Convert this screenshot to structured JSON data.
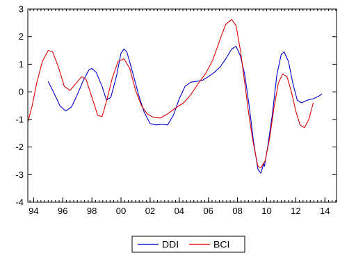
{
  "chart_data": {
    "type": "line",
    "title": "",
    "xlabel": "",
    "ylabel": "",
    "xlim": [
      1993.6,
      2014.8
    ],
    "ylim": [
      -4,
      3
    ],
    "x_ticks": [
      1994,
      1996,
      1998,
      2000,
      2002,
      2004,
      2006,
      2008,
      2010,
      2012,
      2014
    ],
    "x_tick_labels": [
      "94",
      "96",
      "98",
      "00",
      "02",
      "04",
      "06",
      "08",
      "10",
      "12",
      "14"
    ],
    "y_ticks": [
      -4,
      -3,
      -2,
      -1,
      0,
      1,
      2,
      3
    ],
    "y_tick_labels": [
      "-4",
      "-3",
      "-2",
      "-1",
      "0",
      "1",
      "2",
      "3"
    ],
    "grid": false,
    "legend_position": "bottom-center",
    "series": [
      {
        "name": "DDI",
        "color": "#0000cc",
        "points": [
          [
            1995.0,
            0.38
          ],
          [
            1995.4,
            -0.05
          ],
          [
            1995.8,
            -0.5
          ],
          [
            1996.2,
            -0.7
          ],
          [
            1996.6,
            -0.55
          ],
          [
            1997.0,
            -0.1
          ],
          [
            1997.4,
            0.4
          ],
          [
            1997.8,
            0.8
          ],
          [
            1998.0,
            0.85
          ],
          [
            1998.3,
            0.7
          ],
          [
            1998.7,
            0.2
          ],
          [
            1999.0,
            -0.3
          ],
          [
            1999.3,
            -0.2
          ],
          [
            1999.7,
            0.6
          ],
          [
            2000.0,
            1.4
          ],
          [
            2000.2,
            1.55
          ],
          [
            2000.4,
            1.45
          ],
          [
            2000.8,
            0.7
          ],
          [
            2001.2,
            -0.1
          ],
          [
            2001.6,
            -0.75
          ],
          [
            2002.0,
            -1.15
          ],
          [
            2002.4,
            -1.2
          ],
          [
            2002.8,
            -1.18
          ],
          [
            2003.2,
            -1.2
          ],
          [
            2003.6,
            -0.85
          ],
          [
            2004.0,
            -0.25
          ],
          [
            2004.4,
            0.2
          ],
          [
            2004.8,
            0.35
          ],
          [
            2005.2,
            0.38
          ],
          [
            2005.6,
            0.42
          ],
          [
            2006.0,
            0.55
          ],
          [
            2006.4,
            0.7
          ],
          [
            2006.8,
            0.9
          ],
          [
            2007.2,
            1.2
          ],
          [
            2007.6,
            1.55
          ],
          [
            2007.9,
            1.65
          ],
          [
            2008.2,
            1.3
          ],
          [
            2008.5,
            0.6
          ],
          [
            2008.8,
            -0.5
          ],
          [
            2009.1,
            -1.8
          ],
          [
            2009.4,
            -2.8
          ],
          [
            2009.6,
            -2.95
          ],
          [
            2009.8,
            -2.6
          ],
          [
            2009.85,
            -2.7
          ],
          [
            2010.1,
            -1.9
          ],
          [
            2010.4,
            -0.8
          ],
          [
            2010.7,
            0.6
          ],
          [
            2011.0,
            1.35
          ],
          [
            2011.2,
            1.45
          ],
          [
            2011.5,
            1.1
          ],
          [
            2011.8,
            0.3
          ],
          [
            2012.1,
            -0.3
          ],
          [
            2012.4,
            -0.4
          ],
          [
            2012.8,
            -0.3
          ],
          [
            2013.2,
            -0.25
          ],
          [
            2013.6,
            -0.15
          ],
          [
            2013.8,
            -0.08
          ]
        ]
      },
      {
        "name": "BCI",
        "color": "#dd0000",
        "points": [
          [
            1993.6,
            -1.1
          ],
          [
            1993.9,
            -0.5
          ],
          [
            1994.2,
            0.3
          ],
          [
            1994.6,
            1.1
          ],
          [
            1995.0,
            1.5
          ],
          [
            1995.3,
            1.45
          ],
          [
            1995.7,
            0.9
          ],
          [
            1996.1,
            0.2
          ],
          [
            1996.5,
            0.05
          ],
          [
            1996.9,
            0.3
          ],
          [
            1997.3,
            0.55
          ],
          [
            1997.6,
            0.45
          ],
          [
            1998.0,
            -0.2
          ],
          [
            1998.4,
            -0.85
          ],
          [
            1998.7,
            -0.9
          ],
          [
            1999.0,
            -0.35
          ],
          [
            1999.4,
            0.5
          ],
          [
            1999.8,
            1.1
          ],
          [
            2000.2,
            1.2
          ],
          [
            2000.6,
            0.85
          ],
          [
            2001.0,
            0.05
          ],
          [
            2001.4,
            -0.5
          ],
          [
            2001.8,
            -0.8
          ],
          [
            2002.2,
            -0.92
          ],
          [
            2002.7,
            -0.95
          ],
          [
            2003.2,
            -0.8
          ],
          [
            2003.7,
            -0.6
          ],
          [
            2004.3,
            -0.4
          ],
          [
            2004.8,
            -0.1
          ],
          [
            2005.3,
            0.3
          ],
          [
            2005.8,
            0.65
          ],
          [
            2006.3,
            1.15
          ],
          [
            2006.8,
            1.9
          ],
          [
            2007.2,
            2.45
          ],
          [
            2007.6,
            2.62
          ],
          [
            2007.9,
            2.4
          ],
          [
            2008.2,
            1.5
          ],
          [
            2008.5,
            0.3
          ],
          [
            2008.8,
            -0.9
          ],
          [
            2009.1,
            -1.9
          ],
          [
            2009.4,
            -2.7
          ],
          [
            2009.6,
            -2.75
          ],
          [
            2009.9,
            -2.5
          ],
          [
            2010.2,
            -1.7
          ],
          [
            2010.5,
            -0.6
          ],
          [
            2010.8,
            0.3
          ],
          [
            2011.1,
            0.65
          ],
          [
            2011.4,
            0.55
          ],
          [
            2011.7,
            0.0
          ],
          [
            2012.0,
            -0.7
          ],
          [
            2012.3,
            -1.2
          ],
          [
            2012.6,
            -1.3
          ],
          [
            2012.9,
            -1.0
          ],
          [
            2013.2,
            -0.4
          ]
        ]
      }
    ]
  }
}
